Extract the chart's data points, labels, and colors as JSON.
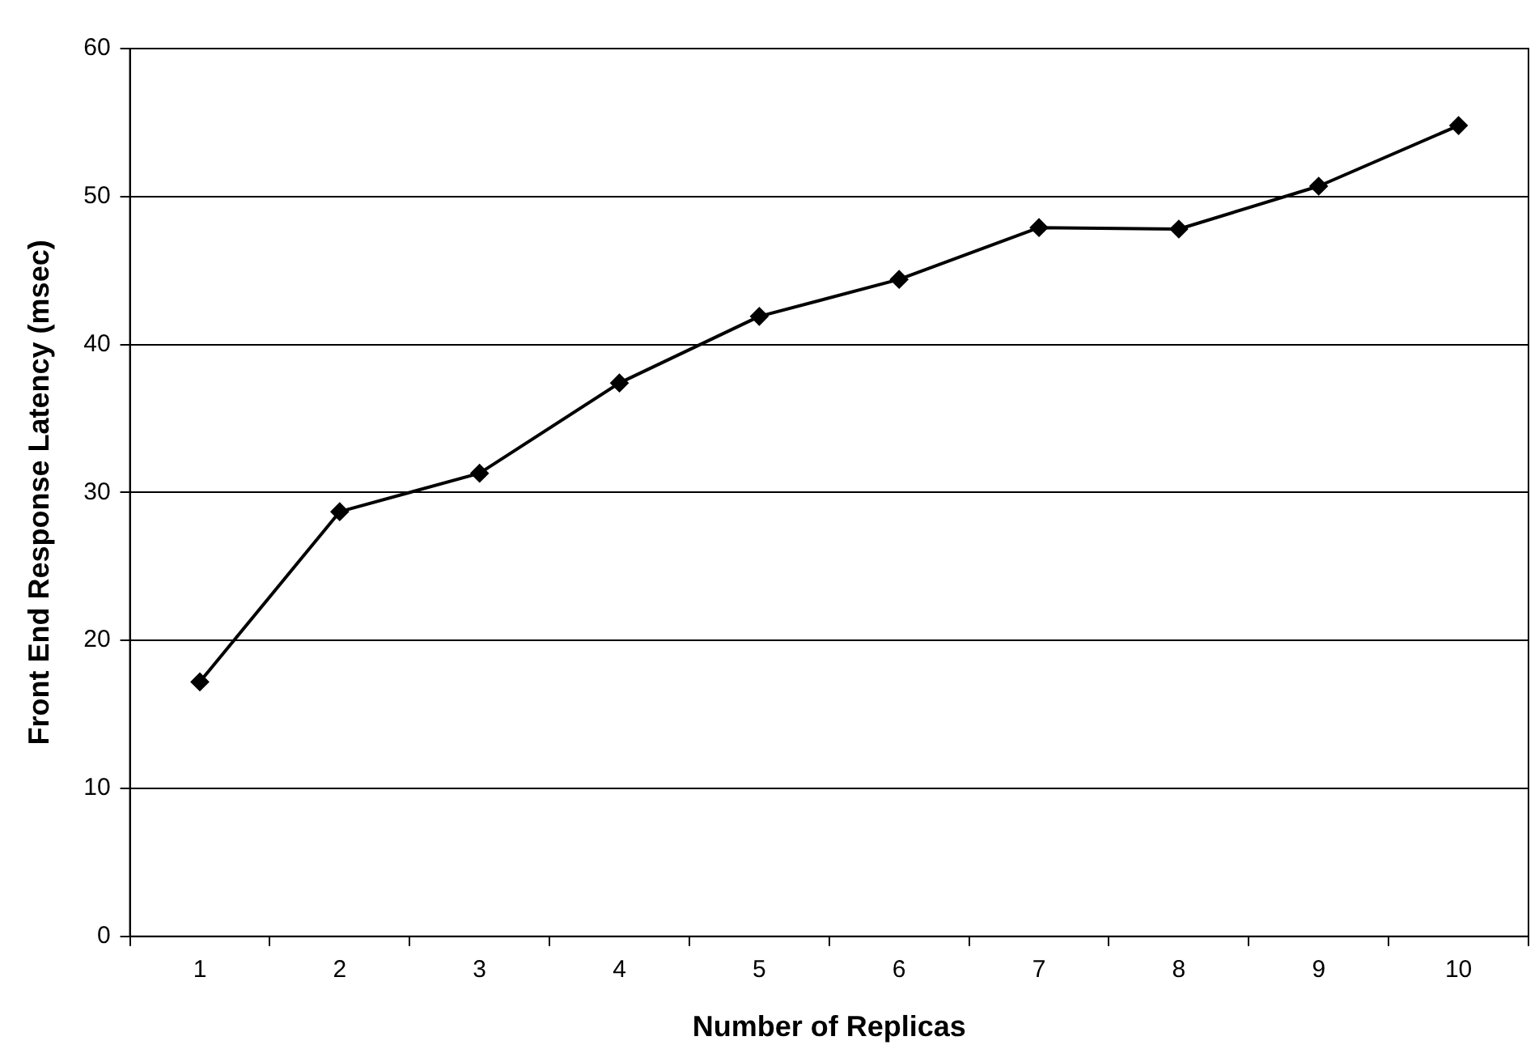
{
  "chart_data": {
    "type": "line",
    "xlabel": "Number of Replicas",
    "ylabel": "Front End Response Latency (msec)",
    "categories": [
      "1",
      "2",
      "3",
      "4",
      "5",
      "6",
      "7",
      "8",
      "9",
      "10"
    ],
    "series": [
      {
        "color": "#000000",
        "values": [
          17.2,
          28.7,
          31.3,
          37.4,
          41.9,
          44.4,
          47.9,
          47.8,
          50.7,
          54.8
        ]
      }
    ],
    "ylim": [
      0,
      60
    ],
    "yticks": [
      0,
      10,
      20,
      30,
      40,
      50,
      60
    ],
    "grid": "y",
    "legend": false,
    "marker": "diamond",
    "line_style": "solid"
  }
}
